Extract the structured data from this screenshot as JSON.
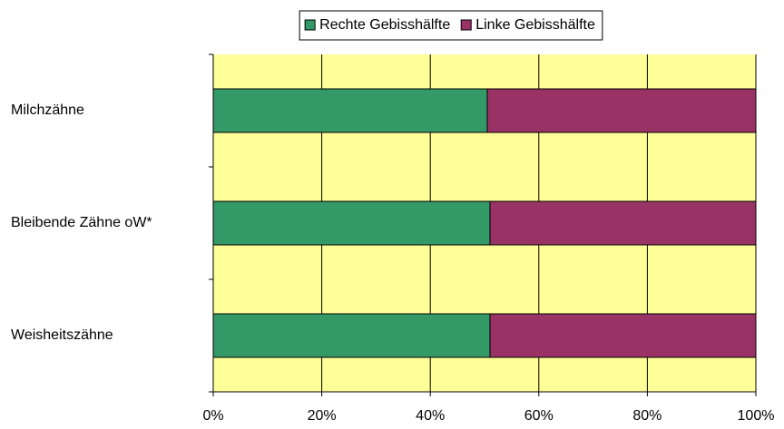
{
  "chart_data": {
    "type": "stacked_barh",
    "categories": [
      "Milchzähne",
      "Bleibende Zähne oW*",
      "Weisheitszähne"
    ],
    "series": [
      {
        "name": "Rechte Gebisshälfte",
        "color": "#339966",
        "values": [
          50.5,
          51,
          51
        ]
      },
      {
        "name": "Linke Gebisshälfte",
        "color": "#993366",
        "values": [
          49.5,
          49,
          49
        ]
      }
    ],
    "xlim": [
      0,
      100
    ],
    "xticks": [
      {
        "value": 0,
        "label": "0%"
      },
      {
        "value": 20,
        "label": "20%"
      },
      {
        "value": 40,
        "label": "40%"
      },
      {
        "value": 60,
        "label": "60%"
      },
      {
        "value": 80,
        "label": "80%"
      },
      {
        "value": 100,
        "label": "100%"
      }
    ],
    "grid": true,
    "legend": "top",
    "plot_background": "#ffff99"
  }
}
